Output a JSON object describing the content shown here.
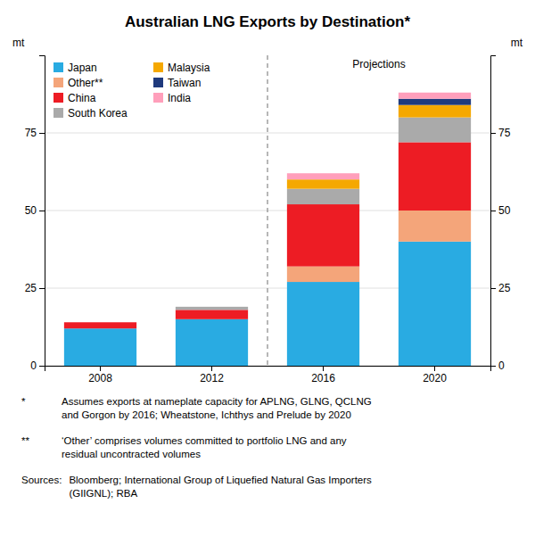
{
  "chart_data": {
    "type": "bar",
    "stacked": true,
    "title": "Australian LNG Exports by Destination*",
    "ylabel": "mt",
    "y2label": "mt",
    "categories": [
      "2008",
      "2012",
      "2016",
      "2020"
    ],
    "series": [
      {
        "name": "Japan",
        "color": "#29abe2",
        "values": [
          12,
          15,
          27,
          40
        ]
      },
      {
        "name": "Other**",
        "color": "#f4a57a",
        "values": [
          0,
          0,
          5,
          10
        ]
      },
      {
        "name": "China",
        "color": "#ed1c24",
        "values": [
          2,
          3,
          20,
          22
        ]
      },
      {
        "name": "South Korea",
        "color": "#aaaaaa",
        "values": [
          0,
          1,
          5,
          8
        ]
      },
      {
        "name": "Malaysia",
        "color": "#f5a800",
        "values": [
          0,
          0,
          3,
          4
        ]
      },
      {
        "name": "Taiwan",
        "color": "#1f3a7d",
        "values": [
          0,
          0,
          0,
          2
        ]
      },
      {
        "name": "India",
        "color": "#ff9fbb",
        "values": [
          0,
          0,
          2,
          2
        ]
      }
    ],
    "ylim": [
      0,
      100
    ],
    "yticks": [
      0,
      25,
      50,
      75
    ],
    "y2lim": [
      0,
      100
    ],
    "y2ticks": [
      0,
      25,
      50,
      75
    ],
    "grid": true,
    "legend": "upper left",
    "annotations": [
      {
        "text": "Projections",
        "x": "2016"
      }
    ],
    "notes": [
      {
        "symbol": "*",
        "text": "Assumes exports at nameplate capacity for APLNG, GLNG, QCLNG\nand Gorgon by 2016; Wheatstone, Ichthys and Prelude by 2020"
      },
      {
        "symbol": "**",
        "text": "‘Other’ comprises volumes committed to portfolio LNG and any\nresidual uncontracted volumes"
      },
      {
        "symbol": "Sources:",
        "text": "Bloomberg; International Group of Liquefied Natural Gas Importers\n(GIIGNL); RBA"
      }
    ]
  }
}
